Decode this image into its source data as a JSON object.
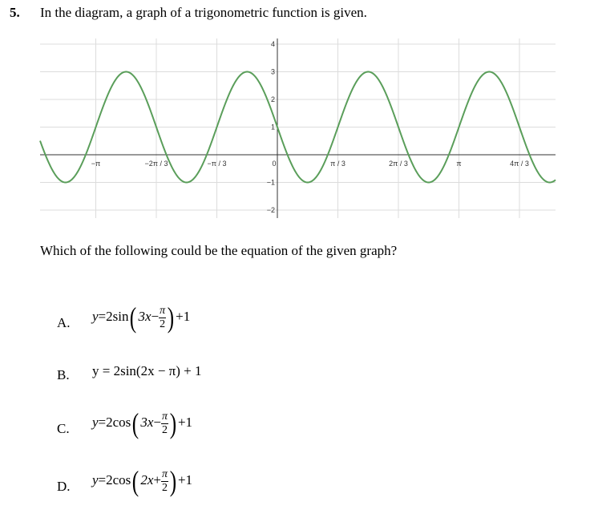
{
  "question": {
    "number": "5.",
    "prompt": "In the diagram, a graph of a trigonometric function is given.",
    "ask": "Which of the following could be the equation of the given graph?"
  },
  "graph": {
    "x_tick_labels": [
      "−π",
      "−2π / 3",
      "−π / 3",
      "0",
      "π / 3",
      "2π / 3",
      "π",
      "4π / 3"
    ],
    "y_tick_labels": [
      "4",
      "3",
      "2",
      "1",
      "−1",
      "−2"
    ],
    "curve_color": "#5a9e5a"
  },
  "chart_data": {
    "type": "line",
    "function": "y = 2cos(3x + π/2) + 1",
    "amplitude": 2,
    "midline": 1,
    "period": "2π/3",
    "x": [
      "−π",
      "−2π/3",
      "−π/3",
      "0",
      "π/3",
      "2π/3",
      "π",
      "4π/3"
    ],
    "y": [
      1,
      1,
      1,
      1,
      1,
      1,
      1,
      1
    ],
    "ylim": [
      -2,
      4
    ]
  },
  "options": [
    {
      "letter": "A.",
      "lhs": "y",
      "func": "2sin",
      "arg_a": "3x",
      "sign": "−",
      "frac_num": "π",
      "frac_den": "2",
      "tail": "+1"
    },
    {
      "letter": "B.",
      "text": "y = 2sin(2x − π) + 1"
    },
    {
      "letter": "C.",
      "lhs": "y",
      "func": "2cos",
      "arg_a": "3x",
      "sign": "−",
      "frac_num": "π",
      "frac_den": "2",
      "tail": "+1"
    },
    {
      "letter": "D.",
      "lhs": "y",
      "func": "2cos",
      "arg_a": "2x",
      "sign": "+",
      "frac_num": "π",
      "frac_den": "2",
      "tail": "+1"
    }
  ]
}
